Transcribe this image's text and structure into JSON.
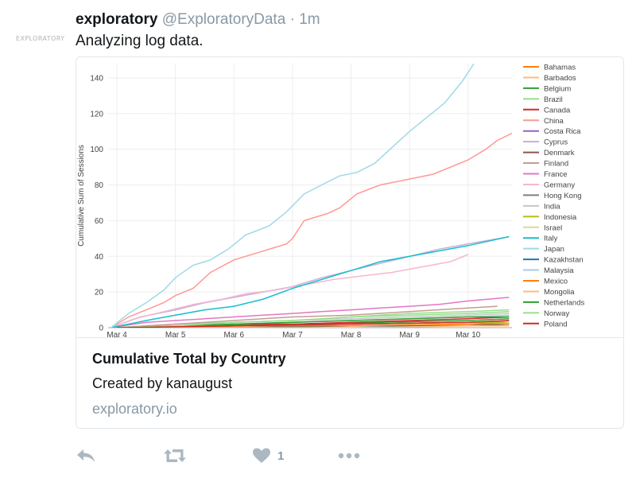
{
  "avatar": {
    "text": "EXPLORATORY"
  },
  "tweet": {
    "name": "exploratory",
    "handle": "@ExploratoryData",
    "dot": "·",
    "time": "1m",
    "text": "Analyzing log data."
  },
  "card": {
    "title": "Cumulative Total by Country",
    "description": "Created by kanaugust",
    "url": "exploratory.io"
  },
  "actions": {
    "reply_icon": "reply-icon",
    "retweet_icon": "retweet-icon",
    "like_icon": "heart-icon",
    "like_count": "1",
    "more_icon": "more-icon"
  },
  "chart_data": {
    "type": "line",
    "ylabel": "Cumulative Sum of Sessions",
    "xlabel": "",
    "x_ticks": [
      "Mar 4",
      "Mar 5",
      "Mar 6",
      "Mar 7",
      "Mar 8",
      "Mar 9",
      "Mar 10"
    ],
    "x_range": [
      3.85,
      10.75
    ],
    "y_ticks": [
      0,
      20,
      40,
      60,
      80,
      100,
      120,
      140
    ],
    "ylim": [
      0,
      148
    ],
    "grid": true,
    "legend_position": "right",
    "series": [
      {
        "name": "Bahamas",
        "color": "#ff7f0e",
        "x": [
          4.0,
          6.0,
          8.0,
          10.0,
          10.7
        ],
        "y": [
          0,
          1,
          1,
          2,
          3
        ]
      },
      {
        "name": "Barbados",
        "color": "#ffbb78",
        "x": [
          4.0,
          6.5,
          8.5,
          10.7
        ],
        "y": [
          0,
          1,
          1,
          2
        ]
      },
      {
        "name": "Belgium",
        "color": "#2ca02c",
        "x": [
          4.0,
          5.5,
          7.0,
          8.5,
          10.0,
          10.7
        ],
        "y": [
          0,
          1,
          2,
          3,
          4,
          5
        ]
      },
      {
        "name": "Brazil",
        "color": "#98df8a",
        "x": [
          4.0,
          5.0,
          6.0,
          7.0,
          8.0,
          9.0,
          10.0,
          10.7
        ],
        "y": [
          0,
          2,
          3,
          4,
          6,
          8,
          9,
          10
        ]
      },
      {
        "name": "Canada",
        "color": "#d62728",
        "x": [
          4.0,
          5.0,
          6.0,
          7.0,
          8.0,
          9.0,
          10.0,
          10.7
        ],
        "y": [
          0,
          1,
          2,
          2,
          3,
          4,
          5,
          6
        ]
      },
      {
        "name": "China",
        "color": "#ff9896",
        "x": [
          3.9,
          4.2,
          4.5,
          4.8,
          5.0,
          5.3,
          5.6,
          6.0,
          6.4,
          6.7,
          6.9,
          7.0,
          7.2,
          7.6,
          7.8,
          8.1,
          8.5,
          8.8,
          9.1,
          9.4,
          9.7,
          10.0,
          10.3,
          10.5,
          10.75
        ],
        "y": [
          0,
          6,
          10,
          14,
          18,
          22,
          31,
          38,
          42,
          45,
          47,
          50,
          60,
          64,
          67,
          75,
          80,
          82,
          84,
          86,
          90,
          94,
          100,
          105,
          109
        ]
      },
      {
        "name": "Costa Rica",
        "color": "#9467bd",
        "x": [
          4.0,
          6.0,
          8.0,
          10.0,
          10.7
        ],
        "y": [
          0,
          0,
          1,
          1,
          2
        ]
      },
      {
        "name": "Cyprus",
        "color": "#c5b0d5",
        "x": [
          3.9,
          4.4,
          5.0,
          5.5,
          6.0,
          6.5,
          7.0,
          7.5,
          8.0,
          8.5,
          9.0,
          9.5,
          10.0,
          10.7
        ],
        "y": [
          0,
          6,
          10,
          14,
          17,
          20,
          23,
          28,
          32,
          36,
          40,
          44,
          47,
          51
        ]
      },
      {
        "name": "Denmark",
        "color": "#8c564b",
        "x": [
          4.0,
          6.0,
          8.0,
          10.0,
          10.7
        ],
        "y": [
          0,
          1,
          2,
          3,
          3
        ]
      },
      {
        "name": "Finland",
        "color": "#c49c94",
        "x": [
          4.0,
          5.0,
          6.0,
          7.0,
          8.0,
          9.0,
          10.0,
          10.5
        ],
        "y": [
          0,
          2,
          4,
          6,
          7,
          9,
          11,
          12
        ]
      },
      {
        "name": "France",
        "color": "#e377c2",
        "x": [
          3.9,
          4.5,
          5.0,
          5.5,
          6.0,
          6.5,
          7.0,
          7.5,
          8.0,
          8.5,
          9.0,
          9.5,
          10.0,
          10.7
        ],
        "y": [
          0,
          3,
          4,
          5,
          6,
          7,
          8,
          9,
          10,
          11,
          12,
          13,
          15,
          17
        ]
      },
      {
        "name": "Germany",
        "color": "#f7b6d2",
        "x": [
          3.9,
          4.3,
          4.8,
          5.3,
          5.8,
          6.2,
          6.7,
          7.2,
          7.7,
          8.2,
          8.7,
          9.2,
          9.7,
          10.0
        ],
        "y": [
          0,
          5,
          9,
          13,
          16,
          19,
          21,
          24,
          27,
          29,
          31,
          34,
          37,
          41
        ]
      },
      {
        "name": "Hong Kong",
        "color": "#7f7f7f",
        "x": [
          4.0,
          6.0,
          8.0,
          10.0,
          10.7
        ],
        "y": [
          0,
          1,
          2,
          3,
          4
        ]
      },
      {
        "name": "India",
        "color": "#c7c7c7",
        "x": [
          4.0,
          5.0,
          6.0,
          7.0,
          8.0,
          9.0,
          10.0,
          10.7
        ],
        "y": [
          0,
          1,
          3,
          4,
          5,
          6,
          7,
          8
        ]
      },
      {
        "name": "Indonesia",
        "color": "#bcbd22",
        "x": [
          4.0,
          6.0,
          8.0,
          10.0,
          10.7
        ],
        "y": [
          0,
          1,
          2,
          3,
          3
        ]
      },
      {
        "name": "Israel",
        "color": "#dbdb8d",
        "x": [
          4.0,
          6.0,
          8.0,
          10.0,
          10.5,
          10.7
        ],
        "y": [
          0,
          0,
          1,
          1,
          1,
          3
        ]
      },
      {
        "name": "Italy",
        "color": "#17becf",
        "x": [
          3.9,
          4.5,
          5.0,
          5.5,
          6.0,
          6.5,
          7.0,
          7.5,
          8.0,
          8.5,
          9.0,
          9.5,
          10.0,
          10.7
        ],
        "y": [
          0,
          4,
          7,
          10,
          12,
          16,
          22,
          27,
          32,
          37,
          40,
          43,
          46,
          51
        ]
      },
      {
        "name": "Japan",
        "color": "#9edae5",
        "x": [
          3.9,
          4.2,
          4.5,
          4.8,
          5.0,
          5.3,
          5.6,
          5.9,
          6.2,
          6.6,
          6.9,
          7.2,
          7.5,
          7.8,
          8.1,
          8.4,
          8.7,
          9.0,
          9.3,
          9.6,
          9.9,
          10.1
        ],
        "y": [
          0,
          8,
          14,
          21,
          28,
          35,
          38,
          44,
          52,
          57,
          65,
          75,
          80,
          85,
          87,
          92,
          101,
          110,
          118,
          126,
          138,
          148
        ]
      },
      {
        "name": "Kazakhstan",
        "color": "#1f77b4",
        "x": [
          4.0,
          6.0,
          8.0,
          10.0,
          10.7
        ],
        "y": [
          0,
          0,
          1,
          1,
          2
        ]
      },
      {
        "name": "Malaysia",
        "color": "#aec7e8",
        "x": [
          4.0,
          5.0,
          6.0,
          7.0,
          8.0,
          9.0,
          10.0,
          10.7
        ],
        "y": [
          0,
          1,
          2,
          3,
          4,
          5,
          6,
          7
        ]
      },
      {
        "name": "Mexico",
        "color": "#ff7f0e",
        "x": [
          4.0,
          6.0,
          8.0,
          10.0,
          10.7
        ],
        "y": [
          0,
          1,
          1,
          2,
          2
        ]
      },
      {
        "name": "Mongolia",
        "color": "#ffbb78",
        "x": [
          4.0,
          6.0,
          8.0,
          10.0,
          10.7
        ],
        "y": [
          0,
          0,
          0,
          1,
          1
        ]
      },
      {
        "name": "Netherlands",
        "color": "#2ca02c",
        "x": [
          4.0,
          5.0,
          6.0,
          7.0,
          8.0,
          9.0,
          10.0,
          10.7
        ],
        "y": [
          0,
          1,
          2,
          3,
          4,
          5,
          6,
          6
        ]
      },
      {
        "name": "Norway",
        "color": "#98df8a",
        "x": [
          4.0,
          5.0,
          6.0,
          7.0,
          8.0,
          9.0,
          10.0,
          10.7
        ],
        "y": [
          0,
          1,
          3,
          4,
          6,
          7,
          8,
          9
        ]
      },
      {
        "name": "Poland",
        "color": "#d62728",
        "x": [
          4.0,
          6.0,
          8.0,
          10.0,
          10.7
        ],
        "y": [
          0,
          1,
          2,
          3,
          4
        ]
      }
    ]
  }
}
